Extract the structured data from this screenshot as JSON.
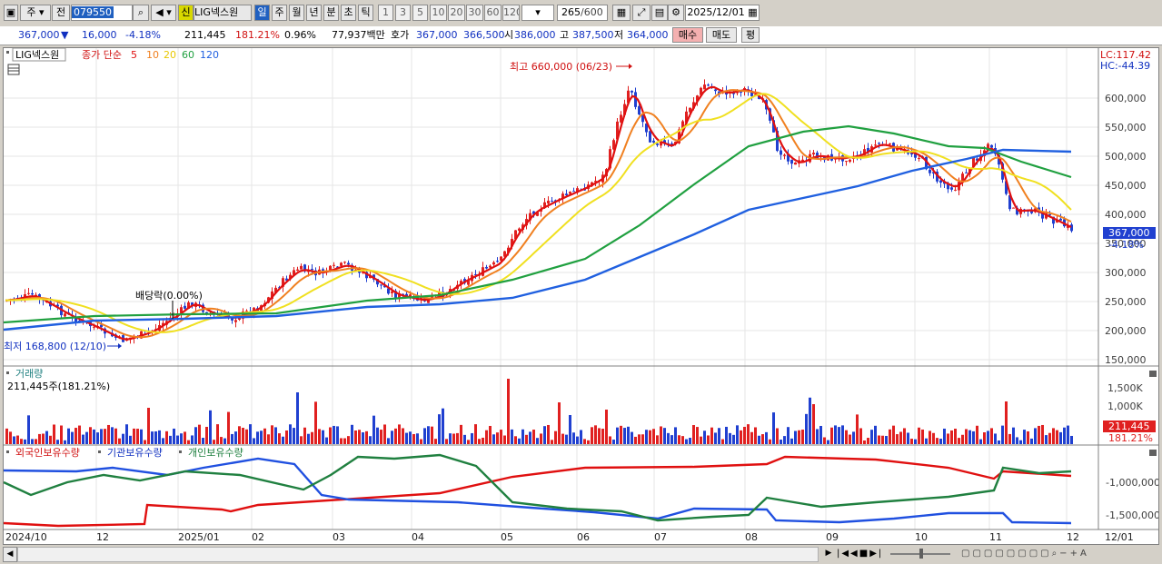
{
  "toolbar": {
    "period_main": "주",
    "period_prev": "전",
    "stock_code": "079550",
    "new_badge": "신",
    "stock_name": "LIG넥스원",
    "period_day": "일",
    "period_week": "주",
    "period_month": "월",
    "period_year": "년",
    "period_minute": "분",
    "period_second": "초",
    "period_tick": "틱",
    "intervals": [
      "1",
      "3",
      "5",
      "10",
      "20",
      "30",
      "60",
      "120"
    ],
    "count_value": "265",
    "count_total": "/600",
    "date_value": "2025/12/01"
  },
  "quote": {
    "price": "367,000",
    "change_arrow": "▼",
    "change": "16,000",
    "change_pct": "-4.18%",
    "volume": "211,445",
    "volume_ratio": "181.21%",
    "turnover": "0.96%",
    "amount": "77,937백만",
    "ask_label": "호가",
    "ask": "367,000",
    "bid": "366,500",
    "open_label": "시",
    "open": "386,000",
    "high_label": "고",
    "high": "387,500",
    "low_label": "저",
    "low": "364,000",
    "buy_button": "매수",
    "sell_button": "매도",
    "eval_button": "평"
  },
  "price_panel": {
    "stock_name": "LIG넥스원",
    "ma_label": "종가 단순",
    "ma_periods": [
      "5",
      "10",
      "20",
      "60",
      "120"
    ],
    "lc_label": "LC:117.42",
    "hc_label": "HC:-44.39",
    "high_annotation": "최고 660,000 (06/23)",
    "low_annotation": "최저 168,800 (12/10)",
    "dividend_annotation": "배당락(0.00%)",
    "current_price_tag": "367,000",
    "current_pct_tag": "-4.18%",
    "y_ticks": [
      "600,000",
      "550,000",
      "500,000",
      "450,000",
      "400,000",
      "350,000",
      "300,000",
      "250,000",
      "200,000",
      "150,000"
    ]
  },
  "volume_panel": {
    "title": "거래량",
    "value_text": "211,445주(181.21%)",
    "y_ticks": [
      "1,500K",
      "1,000K"
    ],
    "current_tag": "211,445",
    "current_pct": "181.21%"
  },
  "holdings_panel": {
    "label_foreign": "외국인보유수량",
    "label_institution": "기관보유수량",
    "label_individual": "개인보유수량",
    "y_ticks": [
      "-1,000,000",
      "-1,500,000"
    ]
  },
  "x_axis": [
    "2024/10",
    "12",
    "2025/01",
    "02",
    "03",
    "04",
    "05",
    "06",
    "07",
    "08",
    "09",
    "10",
    "11",
    "12",
    "12/01"
  ],
  "colors": {
    "ma5": "#e01010",
    "ma10": "#f08020",
    "ma20": "#f0e020",
    "ma60": "#20a040",
    "ma120": "#2060e0",
    "up": "#e02020",
    "down": "#2040d0"
  }
}
